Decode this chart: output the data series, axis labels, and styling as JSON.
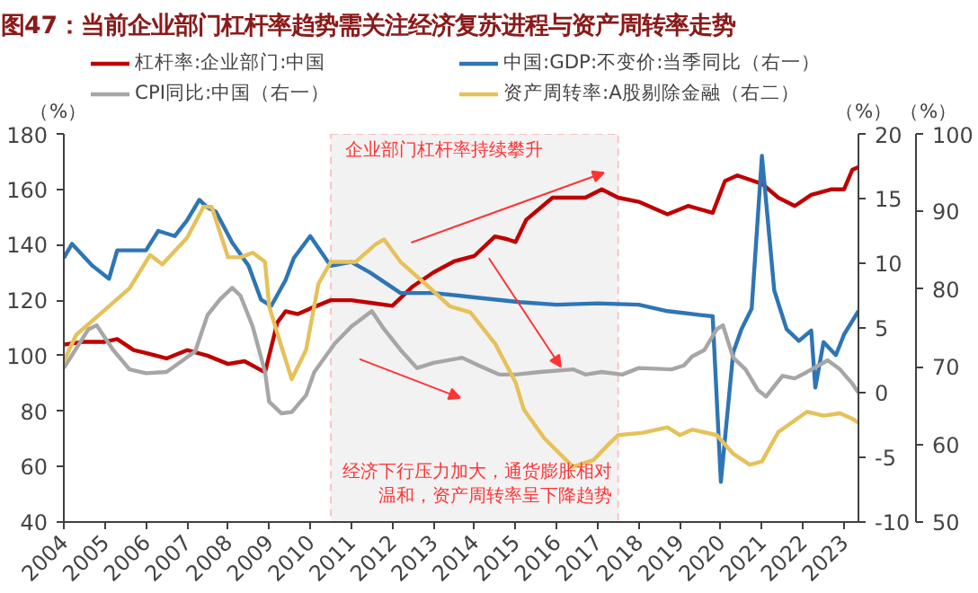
{
  "chart_data": {
    "type": "line",
    "title": "图47：当前企业部门杠杆率趋势需关注经济复苏进程与资产周转率走势",
    "ylabel": "（%）",
    "y2label": "（%）",
    "y3label": "（%）",
    "xlim": [
      2004,
      2023.35
    ],
    "xticks": [
      2004,
      2005,
      2006,
      2007,
      2008,
      2009,
      2010,
      2011,
      2012,
      2013,
      2014,
      2015,
      2016,
      2017,
      2018,
      2019,
      2020,
      2021,
      2022,
      2023
    ],
    "ylim": [
      40,
      180
    ],
    "yticks": [
      40,
      60,
      80,
      100,
      120,
      140,
      160,
      180
    ],
    "y2lim": [
      -10,
      20
    ],
    "y2ticks": [
      -10,
      -5,
      0,
      5,
      10,
      15,
      20
    ],
    "y3lim": [
      50,
      100
    ],
    "y3ticks": [
      50,
      60,
      70,
      80,
      90,
      100
    ],
    "grid": false,
    "legend": "top",
    "line_style": "solid",
    "marker": "none",
    "bands": [
      {
        "axis": "x",
        "from": 2010.5,
        "to": 2017.5,
        "color": "#f2f2f2"
      }
    ],
    "annotations": [
      "企业部门杠杆率持续攀升",
      "经济下行压力加大，通货膨胀相对温和，资产周转率呈下降趋势"
    ],
    "series": [
      {
        "name": "杠杆率:企业部门:中国",
        "color": "#c00000",
        "x": [
          2004,
          2004.5,
          2005,
          2005.3,
          2005.7,
          2006,
          2006.5,
          2007,
          2007.5,
          2008,
          2008.4,
          2008.9,
          2009.2,
          2009.4,
          2009.7,
          2010,
          2010.5,
          2011,
          2011.5,
          2012,
          2012.5,
          2013,
          2013.5,
          2014,
          2014.5,
          2014.8,
          2015.0,
          2015.26,
          2015.9,
          2016.7,
          2017.1,
          2017.5,
          2018,
          2018.7,
          2019.2,
          2019.8,
          2020.1,
          2020.4,
          2021,
          2021.4,
          2021.8,
          2022.2,
          2022.7,
          2023,
          2023.2,
          2023.35
        ],
        "values": [
          104,
          105,
          105,
          106,
          102,
          101,
          99,
          102,
          100,
          97,
          98,
          94,
          112,
          116,
          115,
          117,
          120,
          120,
          119,
          118,
          125,
          130,
          134,
          136,
          143,
          142,
          141,
          149,
          157,
          157,
          160,
          157,
          155.5,
          151,
          154,
          151.5,
          163,
          165,
          162,
          157,
          154,
          158,
          160,
          160,
          167,
          168
        ]
      },
      {
        "name": "中国:GDP:不变价:当季同比（右一）",
        "color": "#2e75b6",
        "axis": "y2",
        "x": [
          2004,
          2004.2,
          2004.7,
          2005.1,
          2005.3,
          2005.7,
          2006,
          2006.3,
          2006.7,
          2007,
          2007.3,
          2007.5,
          2007.7,
          2008.1,
          2008.5,
          2008.8,
          2009.05,
          2009.4,
          2009.6,
          2010,
          2010.5,
          2011,
          2011.45,
          2012.2,
          2013,
          2013.9,
          2015.1,
          2016,
          2017,
          2018,
          2018.7,
          2019.5,
          2019.8,
          2020.0,
          2020.3,
          2020.5,
          2020.75,
          2021.0,
          2021.3,
          2021.6,
          2021.9,
          2022.2,
          2022.3,
          2022.5,
          2022.8,
          2023.0,
          2023.35
        ],
        "values": [
          10.4,
          11.5,
          9.8,
          8.8,
          11,
          11,
          11,
          12.5,
          12.1,
          13.3,
          14.9,
          14.3,
          14.0,
          11.6,
          9.8,
          7.2,
          6.7,
          8.7,
          10.4,
          12.1,
          9.8,
          10.1,
          9.3,
          7.7,
          7.7,
          7.4,
          7.0,
          6.8,
          6.9,
          6.8,
          6.3,
          6.0,
          5.9,
          -6.9,
          3.1,
          4.9,
          6.5,
          18.3,
          7.9,
          4.9,
          4.0,
          4.8,
          0.4,
          3.9,
          2.9,
          4.5,
          6.3
        ]
      },
      {
        "name": "CPI同比:中国（右一）",
        "color": "#a6a6a6",
        "axis": "y2",
        "x": [
          2004,
          2004.6,
          2004.8,
          2005.2,
          2005.6,
          2006.0,
          2006.5,
          2006.9,
          2007.2,
          2007.5,
          2007.8,
          2008.1,
          2008.3,
          2008.6,
          2008.9,
          2009.0,
          2009.3,
          2009.55,
          2009.9,
          2010.1,
          2010.6,
          2011.0,
          2011.5,
          2011.8,
          2012.2,
          2012.6,
          2013.0,
          2013.7,
          2014.1,
          2014.6,
          2015.0,
          2015.6,
          2016.4,
          2016.7,
          2017.1,
          2017.6,
          2018.0,
          2018.8,
          2019.1,
          2019.3,
          2019.6,
          2019.9,
          2020.05,
          2020.3,
          2020.6,
          2020.9,
          2021.1,
          2021.5,
          2021.8,
          2022.1,
          2022.6,
          2022.9,
          2023.2,
          2023.35
        ],
        "values": [
          1.9,
          4.9,
          5.2,
          3.3,
          1.8,
          1.5,
          1.6,
          2.5,
          3.2,
          6.0,
          7.2,
          8.1,
          7.5,
          5.1,
          1.6,
          -0.7,
          -1.6,
          -1.5,
          -0.2,
          1.6,
          3.8,
          5.1,
          6.3,
          4.9,
          3.3,
          1.9,
          2.3,
          2.7,
          2.1,
          1.4,
          1.4,
          1.6,
          1.8,
          1.4,
          1.6,
          1.4,
          1.9,
          1.8,
          2.1,
          2.8,
          3.3,
          4.9,
          5.2,
          2.7,
          1.8,
          0.2,
          -0.3,
          1.3,
          1.1,
          1.6,
          2.5,
          1.8,
          0.7,
          0.0
        ]
      },
      {
        "name": "资产周转率:A股剔除金融（右二）",
        "color": "#e6c15a",
        "axis": "y3",
        "x": [
          2004,
          2004.3,
          2005.1,
          2005.6,
          2006.1,
          2006.4,
          2007.0,
          2007.4,
          2007.6,
          2008.0,
          2008.3,
          2008.6,
          2008.9,
          2009.0,
          2009.3,
          2009.55,
          2009.9,
          2010.2,
          2010.5,
          2011.1,
          2011.6,
          2011.8,
          2012.2,
          2012.8,
          2013.4,
          2013.9,
          2014.5,
          2015.0,
          2015.2,
          2015.7,
          2016.4,
          2016.9,
          2017.3,
          2017.5,
          2018.1,
          2018.7,
          2019.0,
          2019.3,
          2019.9,
          2020.3,
          2020.7,
          2021.0,
          2021.4,
          2022.1,
          2022.5,
          2022.9,
          2023.2,
          2023.35
        ],
        "values": [
          70.7,
          74.1,
          77.8,
          80.1,
          84.4,
          83.2,
          86.6,
          90.6,
          90.6,
          84.1,
          84.1,
          84.7,
          83.5,
          77.8,
          72.6,
          68.4,
          72.2,
          80.7,
          83.5,
          83.5,
          85.8,
          86.4,
          83.5,
          80.7,
          77.8,
          77.0,
          73.0,
          68.0,
          64.5,
          60.8,
          57.1,
          58.0,
          60.2,
          61.2,
          61.5,
          62.2,
          61.2,
          61.9,
          61.2,
          58.8,
          57.4,
          57.8,
          61.6,
          64.2,
          63.7,
          64.0,
          63.3,
          62.8
        ]
      }
    ]
  }
}
